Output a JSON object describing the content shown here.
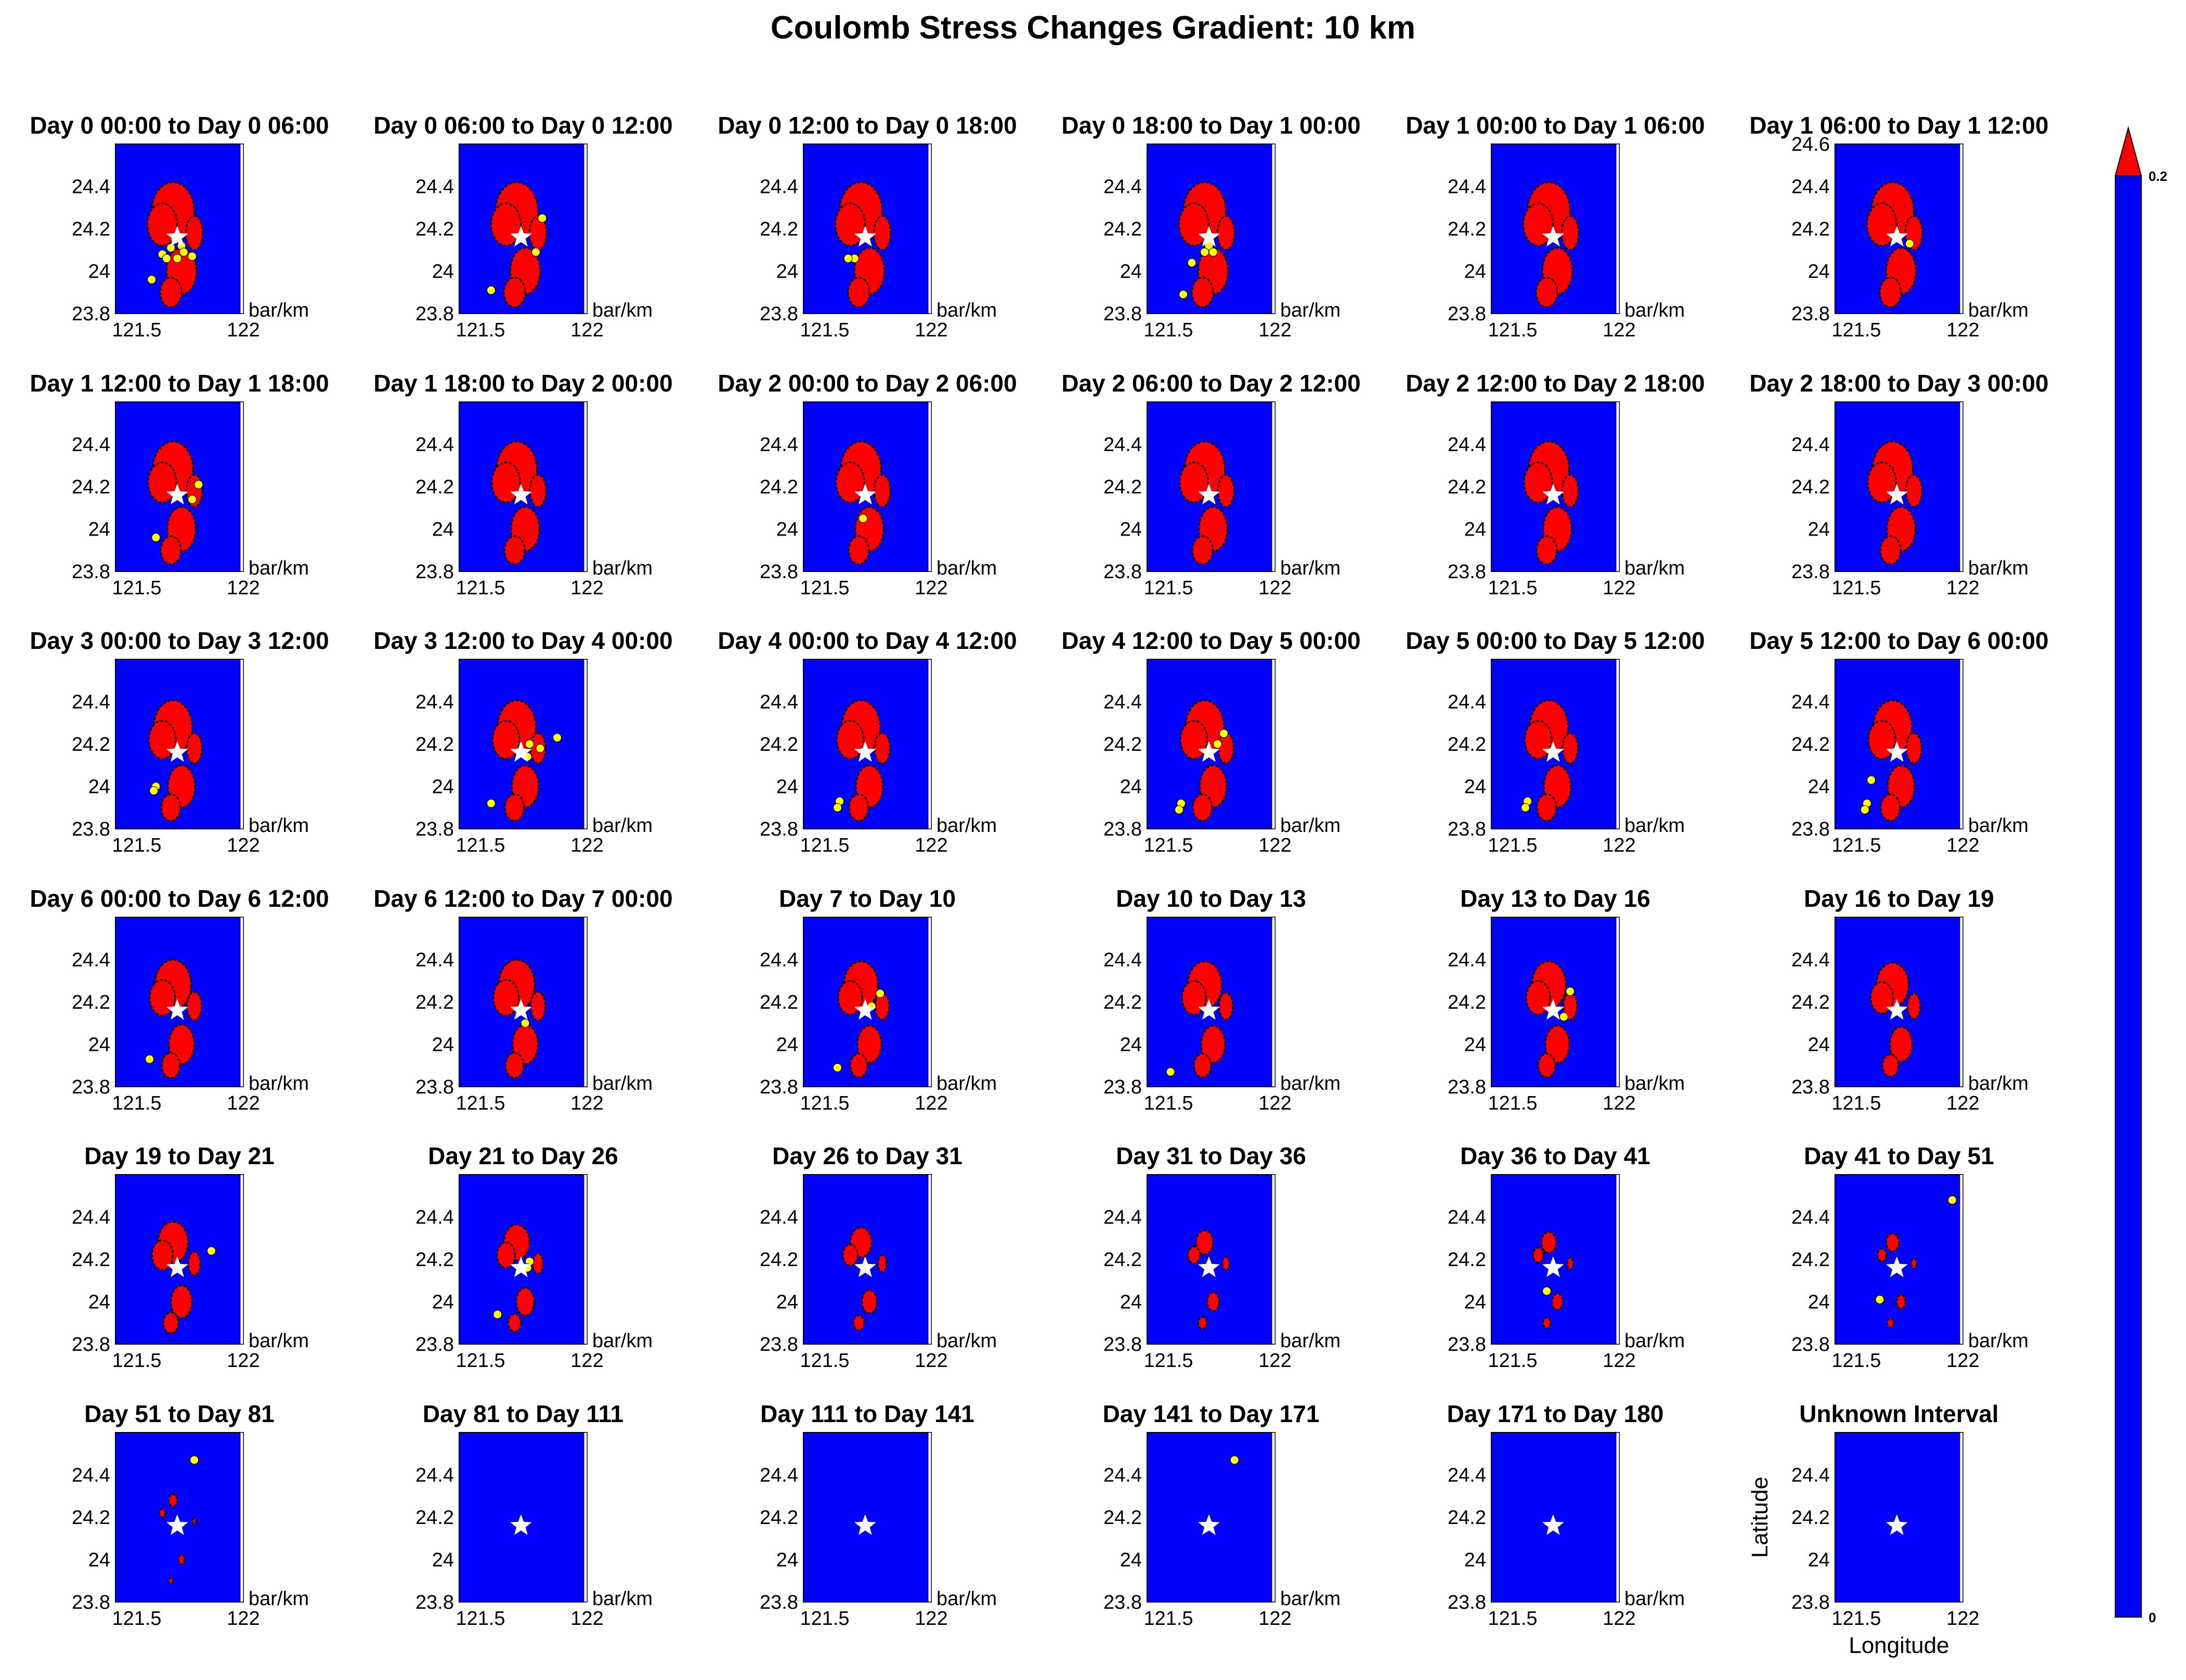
{
  "title": "Coulomb Stress Changes Gradient: 10 km",
  "colors": {
    "background": "#0000ff",
    "stress": "#ff0000",
    "contour": "#000000",
    "event": "#ffff00",
    "mainshock": "#ffffff"
  },
  "axes": {
    "xlim": [
      121.4,
      122.0
    ],
    "ylim": [
      23.8,
      24.6
    ],
    "xticks": [
      "121.5",
      "122"
    ],
    "xtick_values": [
      121.5,
      122.0
    ],
    "yticks": [
      "24.4",
      "24.2",
      "24",
      "23.8"
    ],
    "ytick_values": [
      24.4,
      24.2,
      24.0,
      23.8
    ],
    "yticks_extended": [
      "24.6",
      "24.4",
      "24.2",
      "24",
      "23.8"
    ],
    "ytick_extended_values": [
      24.6,
      24.4,
      24.2,
      24.0,
      23.8
    ],
    "unit_label": "bar/km",
    "xlabel": "Longitude",
    "ylabel": "Latitude"
  },
  "colorbar": {
    "max_label": "0.2",
    "min_label": "0",
    "colors": [
      "#0000ff",
      "#ff0000"
    ]
  },
  "chart_data": {
    "type": "heatmap",
    "mainshock": {
      "lon": 121.69,
      "lat": 24.16,
      "marker": "star"
    },
    "panels": [
      {
        "title": "Day 0 00:00 to Day 0 06:00",
        "stress": 1.0,
        "events": [
          [
            121.68,
            24.15
          ],
          [
            121.71,
            24.12
          ],
          [
            121.66,
            24.11
          ],
          [
            121.62,
            24.08
          ],
          [
            121.64,
            24.06
          ],
          [
            121.72,
            24.09
          ],
          [
            121.76,
            24.07
          ],
          [
            121.69,
            24.06
          ],
          [
            121.57,
            23.96
          ]
        ]
      },
      {
        "title": "Day 0 06:00 to Day 0 12:00",
        "stress": 1.0,
        "events": [
          [
            121.79,
            24.25
          ],
          [
            121.76,
            24.09
          ],
          [
            121.55,
            23.91
          ]
        ]
      },
      {
        "title": "Day 0 12:00 to Day 0 18:00",
        "stress": 1.0,
        "events": [
          [
            121.64,
            24.06
          ],
          [
            121.61,
            24.06
          ]
        ]
      },
      {
        "title": "Day 0 18:00 to Day 1 00:00",
        "stress": 1.0,
        "events": [
          [
            121.69,
            24.12
          ],
          [
            121.67,
            24.09
          ],
          [
            121.61,
            24.04
          ],
          [
            121.57,
            23.89
          ],
          [
            121.71,
            24.09
          ]
        ]
      },
      {
        "title": "Day 1 00:00 to Day 1 06:00",
        "stress": 1.0,
        "events": []
      },
      {
        "title": "Day 1 06:00 to Day 1 12:00",
        "stress": 1.0,
        "extended_ylim": true,
        "events": [
          [
            121.75,
            24.13
          ]
        ]
      },
      {
        "title": "Day 1 12:00 to Day 1 18:00",
        "stress": 0.95,
        "events": [
          [
            121.79,
            24.21
          ],
          [
            121.76,
            24.14
          ],
          [
            121.59,
            23.96
          ]
        ]
      },
      {
        "title": "Day 1 18:00 to Day 2 00:00",
        "stress": 0.95,
        "events": []
      },
      {
        "title": "Day 2 00:00 to Day 2 06:00",
        "stress": 0.95,
        "events": [
          [
            121.68,
            24.05
          ]
        ]
      },
      {
        "title": "Day 2 06:00 to Day 2 12:00",
        "stress": 0.95,
        "events": []
      },
      {
        "title": "Day 2 12:00 to Day 2 18:00",
        "stress": 0.95,
        "events": []
      },
      {
        "title": "Day 2 18:00 to Day 3 00:00",
        "stress": 0.95,
        "events": []
      },
      {
        "title": "Day 3 00:00 to Day 3 12:00",
        "stress": 0.9,
        "events": [
          [
            121.59,
            24.0
          ],
          [
            121.58,
            23.98
          ]
        ]
      },
      {
        "title": "Day 3 12:00 to Day 4 00:00",
        "stress": 0.9,
        "events": [
          [
            121.73,
            24.2
          ],
          [
            121.78,
            24.18
          ],
          [
            121.86,
            24.23
          ],
          [
            121.72,
            24.14
          ],
          [
            121.55,
            23.92
          ]
        ]
      },
      {
        "title": "Day 4 00:00 to Day 4 12:00",
        "stress": 0.9,
        "events": [
          [
            121.57,
            23.93
          ],
          [
            121.56,
            23.9
          ]
        ]
      },
      {
        "title": "Day 4 12:00 to Day 5 00:00",
        "stress": 0.9,
        "events": [
          [
            121.76,
            24.25
          ],
          [
            121.73,
            24.2
          ],
          [
            121.56,
            23.92
          ],
          [
            121.55,
            23.89
          ]
        ]
      },
      {
        "title": "Day 5 00:00 to Day 5 12:00",
        "stress": 0.9,
        "events": [
          [
            121.57,
            23.93
          ],
          [
            121.56,
            23.9
          ]
        ]
      },
      {
        "title": "Day 5 12:00 to Day 6 00:00",
        "stress": 0.9,
        "events": [
          [
            121.57,
            24.03
          ],
          [
            121.55,
            23.92
          ],
          [
            121.54,
            23.89
          ]
        ]
      },
      {
        "title": "Day 6 00:00 to Day 6 12:00",
        "stress": 0.85,
        "events": [
          [
            121.56,
            23.93
          ]
        ]
      },
      {
        "title": "Day 6 12:00 to Day 7 00:00",
        "stress": 0.85,
        "events": [
          [
            121.71,
            24.1
          ]
        ]
      },
      {
        "title": "Day 7 to Day 10",
        "stress": 0.8,
        "events": [
          [
            121.76,
            24.24
          ],
          [
            121.72,
            24.18
          ],
          [
            121.56,
            23.89
          ]
        ]
      },
      {
        "title": "Day 10 to Day 13",
        "stress": 0.8,
        "events": [
          [
            121.51,
            23.87
          ]
        ]
      },
      {
        "title": "Day 13 to Day 16",
        "stress": 0.8,
        "events": [
          [
            121.77,
            24.25
          ],
          [
            121.74,
            24.13
          ]
        ]
      },
      {
        "title": "Day 16 to Day 19",
        "stress": 0.75,
        "events": []
      },
      {
        "title": "Day 19 to Day 21",
        "stress": 0.7,
        "events": [
          [
            121.85,
            24.24
          ]
        ]
      },
      {
        "title": "Day 21 to Day 26",
        "stress": 0.6,
        "events": [
          [
            121.73,
            24.19
          ],
          [
            121.72,
            24.16
          ],
          [
            121.58,
            23.94
          ]
        ]
      },
      {
        "title": "Day 26 to Day 31",
        "stress": 0.5,
        "events": []
      },
      {
        "title": "Day 31 to Day 36",
        "stress": 0.4,
        "events": []
      },
      {
        "title": "Day 36 to Day 41",
        "stress": 0.35,
        "events": [
          [
            121.66,
            24.05
          ]
        ]
      },
      {
        "title": "Day 41 to Day 51",
        "stress": 0.3,
        "events": [
          [
            121.95,
            24.48
          ],
          [
            121.61,
            24.01
          ]
        ]
      },
      {
        "title": "Day 51 to Day 81",
        "stress": 0.2,
        "events": [
          [
            121.77,
            24.47
          ]
        ]
      },
      {
        "title": "Day 81 to Day 111",
        "stress": 0.0,
        "events": []
      },
      {
        "title": "Day 111 to Day 141",
        "stress": 0.0,
        "events": []
      },
      {
        "title": "Day 141 to Day 171",
        "stress": 0.0,
        "events": [
          [
            121.81,
            24.47
          ]
        ]
      },
      {
        "title": "Day 171 to Day 180",
        "stress": 0.0,
        "events": []
      },
      {
        "title": "Unknown Interval",
        "stress": 0.0,
        "show_axis_labels": true,
        "events": []
      }
    ]
  }
}
